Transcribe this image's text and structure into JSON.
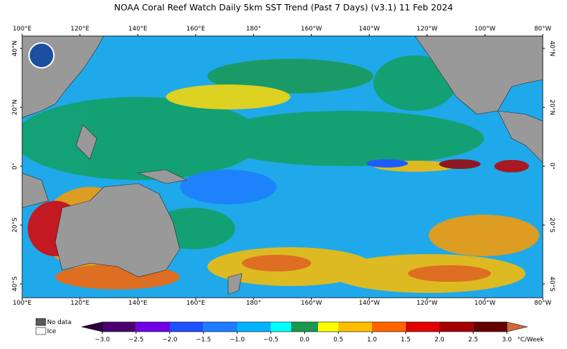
{
  "map": {
    "title": "NOAA Coral Reef Watch Daily 5km SST Trend (Past 7 Days)  (v3.1)   11 Feb 2024",
    "lon_ticks": [
      {
        "value": 100,
        "label": "100°E"
      },
      {
        "value": 120,
        "label": "120°E"
      },
      {
        "value": 140,
        "label": "140°E"
      },
      {
        "value": 160,
        "label": "160°E"
      },
      {
        "value": 180,
        "label": "180°"
      },
      {
        "value": 200,
        "label": "160°W"
      },
      {
        "value": 220,
        "label": "140°W"
      },
      {
        "value": 240,
        "label": "120°W"
      },
      {
        "value": 260,
        "label": "100°W"
      },
      {
        "value": 280,
        "label": "80°W"
      }
    ],
    "lat_ticks": [
      {
        "value": 40,
        "label": "40°N"
      },
      {
        "value": 20,
        "label": "20°N"
      },
      {
        "value": 0,
        "label": "0°"
      },
      {
        "value": -20,
        "label": "20°S"
      },
      {
        "value": -40,
        "label": "40°S"
      }
    ],
    "legend": [
      {
        "label": "No data",
        "color": "#5a5a5a"
      },
      {
        "label": "Ice",
        "color": "#ffffff"
      }
    ],
    "colorbar": {
      "unit": "°C/Week",
      "low_color": "#2e0040",
      "high_color": "#cd6a3a",
      "segments": [
        {
          "from": -3,
          "to": -2.5,
          "color": "#4c0070"
        },
        {
          "from": -2.5,
          "to": -2,
          "color": "#7000e6"
        },
        {
          "from": -2,
          "to": -1.5,
          "color": "#1e50ff"
        },
        {
          "from": -1.5,
          "to": -1,
          "color": "#1e7dff"
        },
        {
          "from": -1,
          "to": -0.5,
          "color": "#00b4ff"
        },
        {
          "from": -0.5,
          "to": -0.2,
          "color": "#00ffff"
        },
        {
          "from": -0.2,
          "to": 0.2,
          "color": "#1a9850"
        },
        {
          "from": 0.2,
          "to": 0.5,
          "color": "#ffff00"
        },
        {
          "from": 0.5,
          "to": 1,
          "color": "#ffbe00"
        },
        {
          "from": 1,
          "to": 1.5,
          "color": "#ff6400"
        },
        {
          "from": 1.5,
          "to": 2,
          "color": "#e00000"
        },
        {
          "from": 2,
          "to": 2.5,
          "color": "#a50000"
        },
        {
          "from": 2.5,
          "to": 3,
          "color": "#640000"
        }
      ],
      "ticks": [
        {
          "value": -3,
          "label": "−3.0"
        },
        {
          "value": -2.5,
          "label": "−2.5"
        },
        {
          "value": -2,
          "label": "−2.0"
        },
        {
          "value": -1.5,
          "label": "−1.5"
        },
        {
          "value": -1,
          "label": "−1.0"
        },
        {
          "value": -0.5,
          "label": "−0.5"
        },
        {
          "value": 0,
          "label": "0.0"
        },
        {
          "value": 0.5,
          "label": "0.5"
        },
        {
          "value": 1,
          "label": "1.0"
        },
        {
          "value": 1.5,
          "label": "1.5"
        },
        {
          "value": 2,
          "label": "2.0"
        },
        {
          "value": 2.5,
          "label": "2.5"
        },
        {
          "value": 3,
          "label": "3.0"
        }
      ]
    }
  }
}
